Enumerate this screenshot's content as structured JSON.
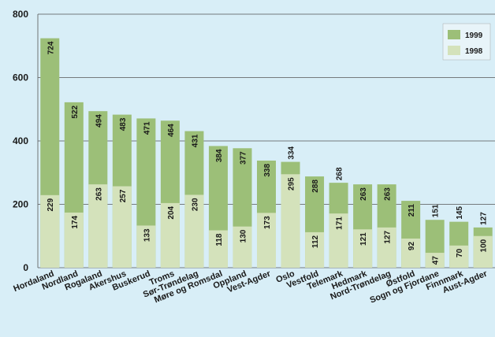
{
  "chart_data": {
    "type": "bar",
    "categories": [
      "Hordaland",
      "Nordland",
      "Rogaland",
      "Akershus",
      "Buskerud",
      "Troms",
      "Sør-Trøndelag",
      "Møre og Romsdal",
      "Oppland",
      "Vest-Agder",
      "Oslo",
      "Vestfold",
      "Telemark",
      "Hedmark",
      "Nord-Trøndelag",
      "Østfold",
      "Sogn og Fjordane",
      "Finnmark",
      "Aust-Agder"
    ],
    "series": [
      {
        "name": "1999",
        "color": "#9cbf78",
        "values": [
          724,
          522,
          494,
          483,
          471,
          464,
          431,
          384,
          377,
          338,
          334,
          288,
          268,
          263,
          263,
          211,
          151,
          145,
          127
        ]
      },
      {
        "name": "1998",
        "color": "#d4e2bb",
        "values": [
          229,
          174,
          263,
          257,
          133,
          204,
          230,
          118,
          130,
          173,
          295,
          112,
          171,
          121,
          127,
          92,
          47,
          70,
          100
        ]
      }
    ],
    "ylim": [
      0,
      800
    ],
    "yticks": [
      0,
      200,
      400,
      600,
      800
    ],
    "grid": true,
    "legend": "top-right"
  }
}
